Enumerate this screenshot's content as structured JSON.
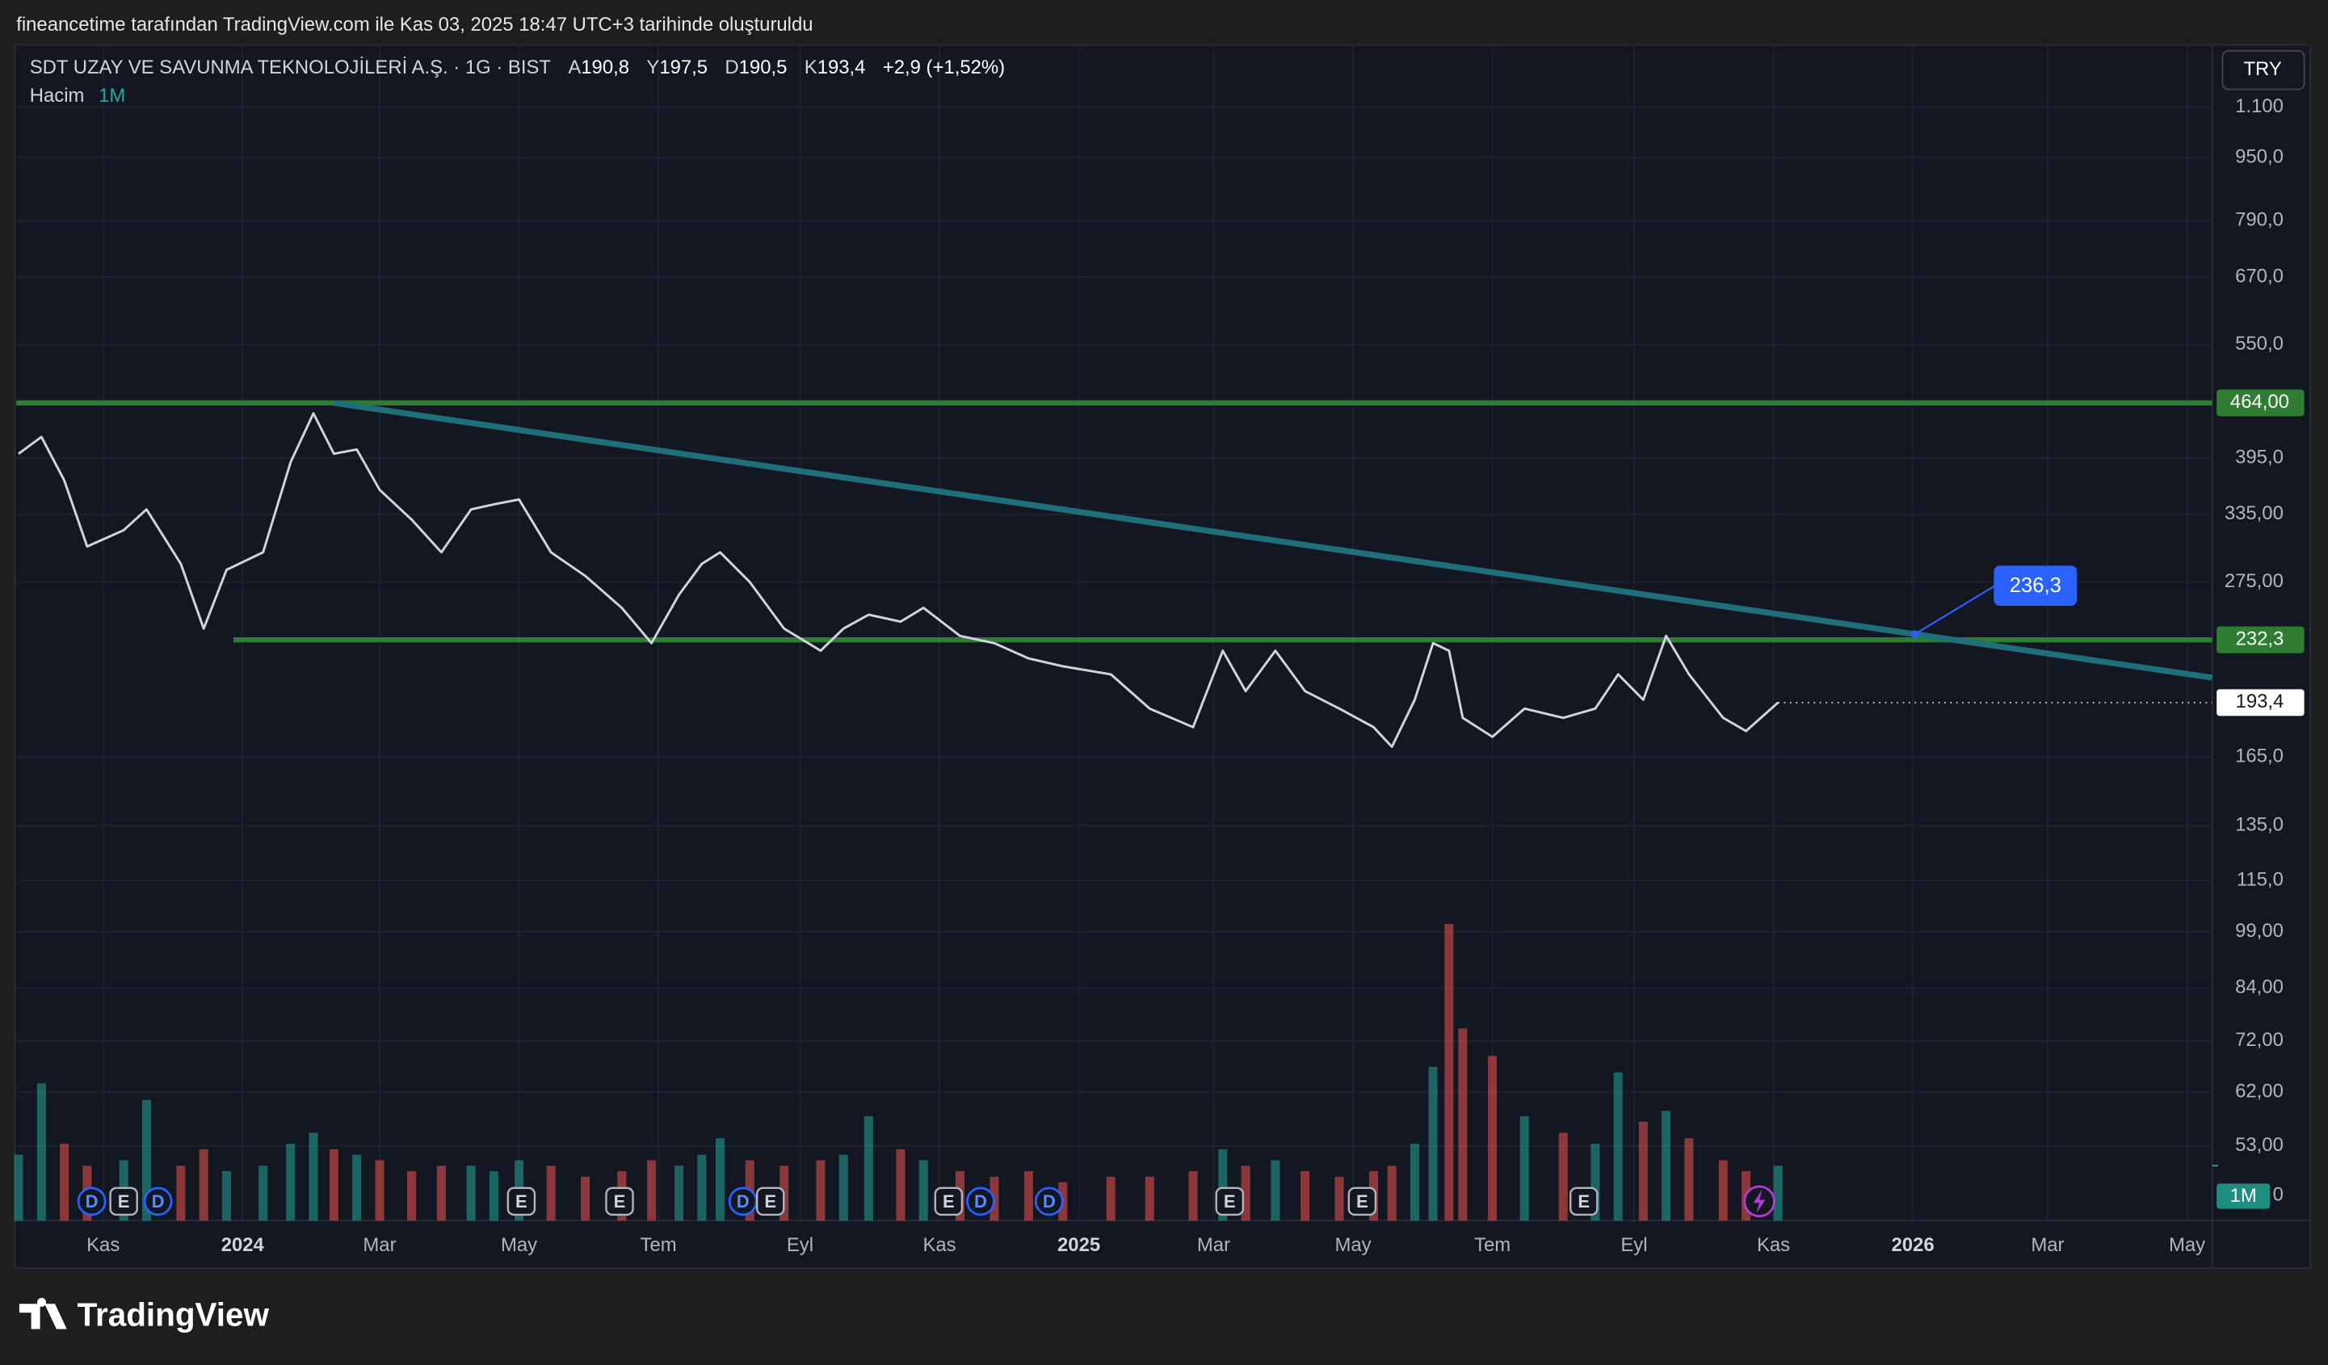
{
  "header": {
    "credit": "fineancetime tarafından TradingView.com ile Kas 03, 2025 18:47 UTC+3 tarihinde oluşturuldu"
  },
  "legend": {
    "symbol": "SDT UZAY VE SAVUNMA TEKNOLOJİLERİ A.Ş. · 1G · BIST",
    "fields": [
      {
        "key": "A",
        "value": "190,8"
      },
      {
        "key": "Y",
        "value": "197,5"
      },
      {
        "key": "D",
        "value": "190,5"
      },
      {
        "key": "K",
        "value": "193,4"
      }
    ],
    "change": "+2,9 (+1,52%)",
    "volume_name": "Hacim"
  },
  "currency": "TRY",
  "footer": {
    "logo": "TradingView"
  },
  "chart_data": {
    "type": "line",
    "log_scale": true,
    "grid": true,
    "color": "#d1d4dc",
    "xlim": [
      "2023-09-24",
      "2026-05-12"
    ],
    "xticks": [
      {
        "value": "2023-11-01",
        "label": "Kas"
      },
      {
        "value": "2024-01-01",
        "label": "2024"
      },
      {
        "value": "2024-03-01",
        "label": "Mar"
      },
      {
        "value": "2024-05-01",
        "label": "May"
      },
      {
        "value": "2024-07-01",
        "label": "Tem"
      },
      {
        "value": "2024-09-01",
        "label": "Eyl"
      },
      {
        "value": "2024-11-01",
        "label": "Kas"
      },
      {
        "value": "2025-01-01",
        "label": "2025"
      },
      {
        "value": "2025-03-01",
        "label": "Mar"
      },
      {
        "value": "2025-05-01",
        "label": "May"
      },
      {
        "value": "2025-07-01",
        "label": "Tem"
      },
      {
        "value": "2025-09-01",
        "label": "Eyl"
      },
      {
        "value": "2025-11-01",
        "label": "Kas"
      },
      {
        "value": "2026-01-01",
        "label": "2026"
      },
      {
        "value": "2026-03-01",
        "label": "Mar"
      },
      {
        "value": "2026-05-01",
        "label": "May"
      }
    ],
    "ylim": [
      42.6,
      1320
    ],
    "yticks": [
      {
        "value": 1100,
        "label": "1.100"
      },
      {
        "value": 950,
        "label": "950,0"
      },
      {
        "value": 790,
        "label": "790,0"
      },
      {
        "value": 670,
        "label": "670,0"
      },
      {
        "value": 550,
        "label": "550,0"
      },
      {
        "value": 395,
        "label": "395,0"
      },
      {
        "value": 335,
        "label": "335,00"
      },
      {
        "value": 275,
        "label": "275,00"
      },
      {
        "value": 165,
        "label": "165,0"
      },
      {
        "value": 135,
        "label": "135,0"
      },
      {
        "value": 115,
        "label": "115,0"
      },
      {
        "value": 99,
        "label": "99,00"
      },
      {
        "value": 84,
        "label": "84,00"
      },
      {
        "value": 72,
        "label": "72,00"
      },
      {
        "value": 62,
        "label": "62,00"
      },
      {
        "value": 53,
        "label": "53,00"
      }
    ],
    "x": [
      "2023-09-25",
      "2023-10-05",
      "2023-10-15",
      "2023-10-25",
      "2023-11-10",
      "2023-11-20",
      "2023-12-05",
      "2023-12-15",
      "2023-12-25",
      "2024-01-10",
      "2024-01-22",
      "2024-02-01",
      "2024-02-10",
      "2024-02-20",
      "2024-03-01",
      "2024-03-15",
      "2024-03-28",
      "2024-04-10",
      "2024-04-20",
      "2024-05-01",
      "2024-05-15",
      "2024-05-30",
      "2024-06-15",
      "2024-06-28",
      "2024-07-10",
      "2024-07-20",
      "2024-07-28",
      "2024-08-10",
      "2024-08-25",
      "2024-09-10",
      "2024-09-20",
      "2024-10-01",
      "2024-10-15",
      "2024-10-25",
      "2024-11-10",
      "2024-11-25",
      "2024-12-10",
      "2024-12-25",
      "2025-01-15",
      "2025-02-01",
      "2025-02-20",
      "2025-03-05",
      "2025-03-15",
      "2025-03-28",
      "2025-04-10",
      "2025-04-25",
      "2025-05-10",
      "2025-05-18",
      "2025-05-28",
      "2025-06-05",
      "2025-06-12",
      "2025-06-18",
      "2025-07-01",
      "2025-07-15",
      "2025-08-01",
      "2025-08-15",
      "2025-08-25",
      "2025-09-05",
      "2025-09-15",
      "2025-09-25",
      "2025-10-10",
      "2025-10-20",
      "2025-11-03"
    ],
    "values": [
      400,
      420,
      370,
      305,
      320,
      340,
      290,
      240,
      285,
      300,
      390,
      450,
      400,
      405,
      360,
      330,
      300,
      340,
      345,
      350,
      300,
      280,
      255,
      230,
      265,
      290,
      300,
      275,
      240,
      225,
      240,
      250,
      245,
      255,
      235,
      230,
      220,
      215,
      210,
      190,
      180,
      225,
      200,
      225,
      200,
      190,
      180,
      170,
      195,
      230,
      225,
      185,
      175,
      190,
      185,
      190,
      210,
      195,
      235,
      210,
      185,
      178,
      193.4
    ],
    "last_label": "193,4",
    "volume": {
      "ylim": [
        0,
        6
      ],
      "yticks": [
        0
      ],
      "up_color": "#26a69a",
      "down_color": "#ef5350",
      "values": [
        1.2,
        2.5,
        1.4,
        1.0,
        1.1,
        2.2,
        1.0,
        1.3,
        0.9,
        1.0,
        1.4,
        1.6,
        1.3,
        1.2,
        1.1,
        0.9,
        1.0,
        1.0,
        0.9,
        1.1,
        1.0,
        0.8,
        0.9,
        1.1,
        1.0,
        1.2,
        1.5,
        1.1,
        1.0,
        1.1,
        1.2,
        1.9,
        1.3,
        1.1,
        0.9,
        0.8,
        0.9,
        0.7,
        0.8,
        0.8,
        0.9,
        1.3,
        1.0,
        1.1,
        0.9,
        0.8,
        0.9,
        1.0,
        1.4,
        2.8,
        5.4,
        3.5,
        3.0,
        1.9,
        1.6,
        1.4,
        2.7,
        1.8,
        2.0,
        1.5,
        1.1,
        0.9,
        1.0
      ]
    },
    "current_volume": {
      "value": 1,
      "label": "1M"
    },
    "levels": [
      {
        "value": 464,
        "label": "464,00",
        "from": "2023-09-24",
        "color": "#2e7d32"
      },
      {
        "value": 232.3,
        "label": "232,3",
        "from": "2023-12-28",
        "color": "#2e7d32"
      }
    ],
    "trendline": {
      "x": [
        "2024-02-10",
        "2026-05-12"
      ],
      "values": [
        464,
        208
      ],
      "color": "#1f6f7a"
    },
    "annotation": {
      "x": "2026-01-02",
      "value": 236.3,
      "label": "236,3",
      "color": "#2962ff"
    },
    "events": [
      {
        "label": "D",
        "x": "2023-10-27"
      },
      {
        "label": "E",
        "x": "2023-11-10"
      },
      {
        "label": "D",
        "x": "2023-11-25"
      },
      {
        "label": "E",
        "x": "2024-05-02"
      },
      {
        "label": "E",
        "x": "2024-06-14"
      },
      {
        "label": "D",
        "x": "2024-08-07"
      },
      {
        "label": "E",
        "x": "2024-08-19"
      },
      {
        "label": "E",
        "x": "2024-11-05"
      },
      {
        "label": "D",
        "x": "2024-11-19"
      },
      {
        "label": "D",
        "x": "2024-12-19"
      },
      {
        "label": "E",
        "x": "2025-03-08"
      },
      {
        "label": "E",
        "x": "2025-05-05"
      },
      {
        "label": "E",
        "x": "2025-08-10"
      }
    ]
  }
}
